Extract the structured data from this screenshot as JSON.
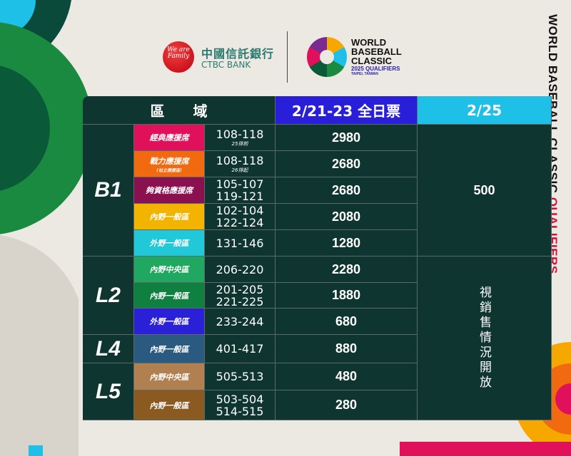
{
  "logos": {
    "ctbc_badge": "We are Family",
    "ctbc_zh": "中國信託銀行",
    "ctbc_en": "CTBC BANK",
    "wbc_lines": [
      "WORLD",
      "BASEBALL",
      "CLASSIC"
    ],
    "wbc_qualifiers": "2025 QUALIFIERS",
    "wbc_location": "TAIPEI, TAIWAN"
  },
  "side_title": {
    "main": "WORLD BASEBALL CLASSIC ",
    "accent": "QUALIFIERS"
  },
  "header": {
    "zone": "區　　域",
    "day1": "2/21-23 全日票",
    "day2": "2/25"
  },
  "colors": {
    "table_bg": "#0f3530",
    "day1_header": "#2a1fd9",
    "day2_header": "#1ec0e8",
    "accent_red": "#d0103a"
  },
  "zones": [
    {
      "label": "B1"
    },
    {
      "label": "L2"
    },
    {
      "label": "L4"
    },
    {
      "label": "L5"
    }
  ],
  "rows": [
    {
      "name": "經典應援席",
      "sub": "",
      "seats": "108-118",
      "seats2": "",
      "seat_note": "25排前",
      "price": "2980",
      "color": "#e0105a"
    },
    {
      "name": "戰力應援席",
      "sub": "(站立應援區)",
      "seats": "108-118",
      "seats2": "",
      "seat_note": "26排起",
      "price": "2680",
      "color": "#f26a10"
    },
    {
      "name": "夠資格應援席",
      "sub": "",
      "seats": "105-107",
      "seats2": "119-121",
      "seat_note": "",
      "price": "2680",
      "color": "#8a1050"
    },
    {
      "name": "內野一般區",
      "sub": "",
      "seats": "102-104",
      "seats2": "122-124",
      "seat_note": "",
      "price": "2080",
      "color": "#f2b400"
    },
    {
      "name": "外野一般區",
      "sub": "",
      "seats": "131-146",
      "seats2": "",
      "seat_note": "",
      "price": "1280",
      "color": "#20c8d8"
    },
    {
      "name": "內野中央區",
      "sub": "",
      "seats": "206-220",
      "seats2": "",
      "seat_note": "",
      "price": "2280",
      "color": "#20a860"
    },
    {
      "name": "內野一般區",
      "sub": "",
      "seats": "201-205",
      "seats2": "221-225",
      "seat_note": "",
      "price": "1880",
      "color": "#108040"
    },
    {
      "name": "外野一般區",
      "sub": "",
      "seats": "233-244",
      "seats2": "",
      "seat_note": "",
      "price": "680",
      "color": "#2a20d8"
    },
    {
      "name": "內野一般區",
      "sub": "",
      "seats": "401-417",
      "seats2": "",
      "seat_note": "",
      "price": "880",
      "color": "#2a5a80"
    },
    {
      "name": "內野中央區",
      "sub": "",
      "seats": "505-513",
      "seats2": "",
      "seat_note": "",
      "price": "480",
      "color": "#b08050"
    },
    {
      "name": "內野一般區",
      "sub": "",
      "seats": "503-504",
      "seats2": "514-515",
      "seat_note": "",
      "price": "280",
      "color": "#8a5a20"
    }
  ],
  "day2": {
    "b1_price": "500",
    "other_note": "視銷售情況開放"
  }
}
